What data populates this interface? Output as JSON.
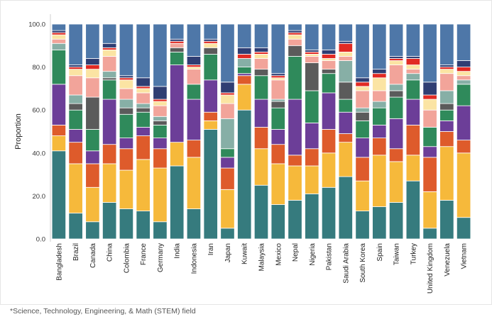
{
  "chart_data": {
    "type": "bar",
    "stacked": true,
    "ylabel": "Proportion",
    "xlabel": "",
    "ylim": [
      0,
      100
    ],
    "yticks": [
      "0.0",
      "20.0",
      "40.0",
      "60.0",
      "80.0",
      "100.0"
    ],
    "categories": [
      "Bangladesh",
      "Brazil",
      "Canada",
      "China",
      "Colombia",
      "France",
      "Germany",
      "India",
      "Indonesia",
      "Iran",
      "Japan",
      "Kuwait",
      "Malaysia",
      "Mexico",
      "Nepal",
      "Nigeria",
      "Pakistan",
      "Saudi Arabia",
      "South Korea",
      "Spain",
      "Taiwan",
      "Turkey",
      "United Kingdom",
      "Venezuela",
      "Vietnam"
    ],
    "series": [
      {
        "name": "teal",
        "color": "#367b7e",
        "values": [
          41,
          12,
          8,
          17,
          14,
          13,
          8,
          34,
          14,
          51,
          5,
          60,
          25,
          16,
          18,
          21,
          24,
          29,
          13,
          15,
          17,
          27,
          5,
          18,
          10
        ]
      },
      {
        "name": "gold",
        "color": "#f6b93b",
        "values": [
          7,
          23,
          16,
          18,
          18,
          24,
          25,
          11,
          24,
          4,
          18,
          12,
          17,
          19,
          16,
          13,
          16,
          16,
          14,
          24,
          19,
          12,
          17,
          25,
          30
        ]
      },
      {
        "name": "orange-red",
        "color": "#de5b2b",
        "values": [
          5,
          10,
          11,
          9,
          10,
          11,
          9,
          0,
          8,
          4,
          10,
          4,
          10,
          9,
          5,
          8,
          11,
          4,
          11,
          8,
          6,
          14,
          16,
          7,
          6
        ]
      },
      {
        "name": "purple",
        "color": "#6c3e98",
        "values": [
          19,
          6,
          6,
          21,
          5,
          4,
          5,
          36,
          19,
          15,
          5,
          1,
          13,
          7,
          26,
          12,
          17,
          10,
          9,
          6,
          14,
          12,
          5,
          5,
          16
        ]
      },
      {
        "name": "green",
        "color": "#2f8a5b",
        "values": [
          16,
          9,
          10,
          9,
          11,
          7,
          6,
          6,
          7,
          12,
          4,
          3,
          11,
          10,
          20,
          15,
          9,
          6,
          8,
          8,
          10,
          9,
          9,
          5,
          10
        ]
      },
      {
        "name": "dark-gray",
        "color": "#5b5b5b",
        "values": [
          0,
          3,
          15,
          1,
          3,
          2,
          2,
          2,
          0,
          3,
          0,
          0,
          3,
          3,
          5,
          13,
          2,
          8,
          4,
          0,
          3,
          0,
          0,
          3,
          0
        ]
      },
      {
        "name": "sage",
        "color": "#87afa6",
        "values": [
          3,
          4,
          0,
          3,
          4,
          2,
          2,
          0,
          0,
          0,
          14,
          4,
          0,
          1,
          0,
          0,
          0,
          10,
          2,
          3,
          3,
          3,
          0,
          6,
          2
        ]
      },
      {
        "name": "salmon",
        "color": "#f2a49a",
        "values": [
          2,
          9,
          9,
          7,
          5,
          5,
          5,
          2,
          7,
          0,
          7,
          0,
          5,
          9,
          3,
          3,
          4,
          2,
          8,
          5,
          9,
          2,
          8,
          8,
          2
        ]
      },
      {
        "name": "light-yellow",
        "color": "#fbe4a3",
        "values": [
          2,
          3,
          4,
          3,
          4,
          2,
          2,
          0,
          1,
          2,
          4,
          0,
          2,
          1,
          2,
          1,
          1,
          2,
          2,
          6,
          2,
          2,
          5,
          2,
          2
        ]
      },
      {
        "name": "red",
        "color": "#e12a23",
        "values": [
          1,
          1,
          2,
          1,
          1,
          1,
          1,
          1,
          1,
          1,
          1,
          2,
          1,
          1,
          1,
          1,
          2,
          4,
          2,
          2,
          1,
          3,
          2,
          1,
          2
        ]
      },
      {
        "name": "navy",
        "color": "#2f3e73",
        "values": [
          1,
          1,
          3,
          2,
          1,
          4,
          6,
          1,
          4,
          1,
          5,
          3,
          2,
          1,
          1,
          1,
          2,
          1,
          2,
          2,
          1,
          1,
          6,
          1,
          3
        ]
      },
      {
        "name": "steel-blue",
        "color": "#4e77a8",
        "values": [
          3,
          19,
          16,
          9,
          24,
          25,
          29,
          7,
          15,
          7,
          27,
          11,
          11,
          23,
          3,
          12,
          12,
          8,
          25,
          21,
          15,
          15,
          27,
          19,
          17
        ]
      }
    ]
  },
  "footnote": "*Science, Technology, Engineering, & Math (STEM) field"
}
